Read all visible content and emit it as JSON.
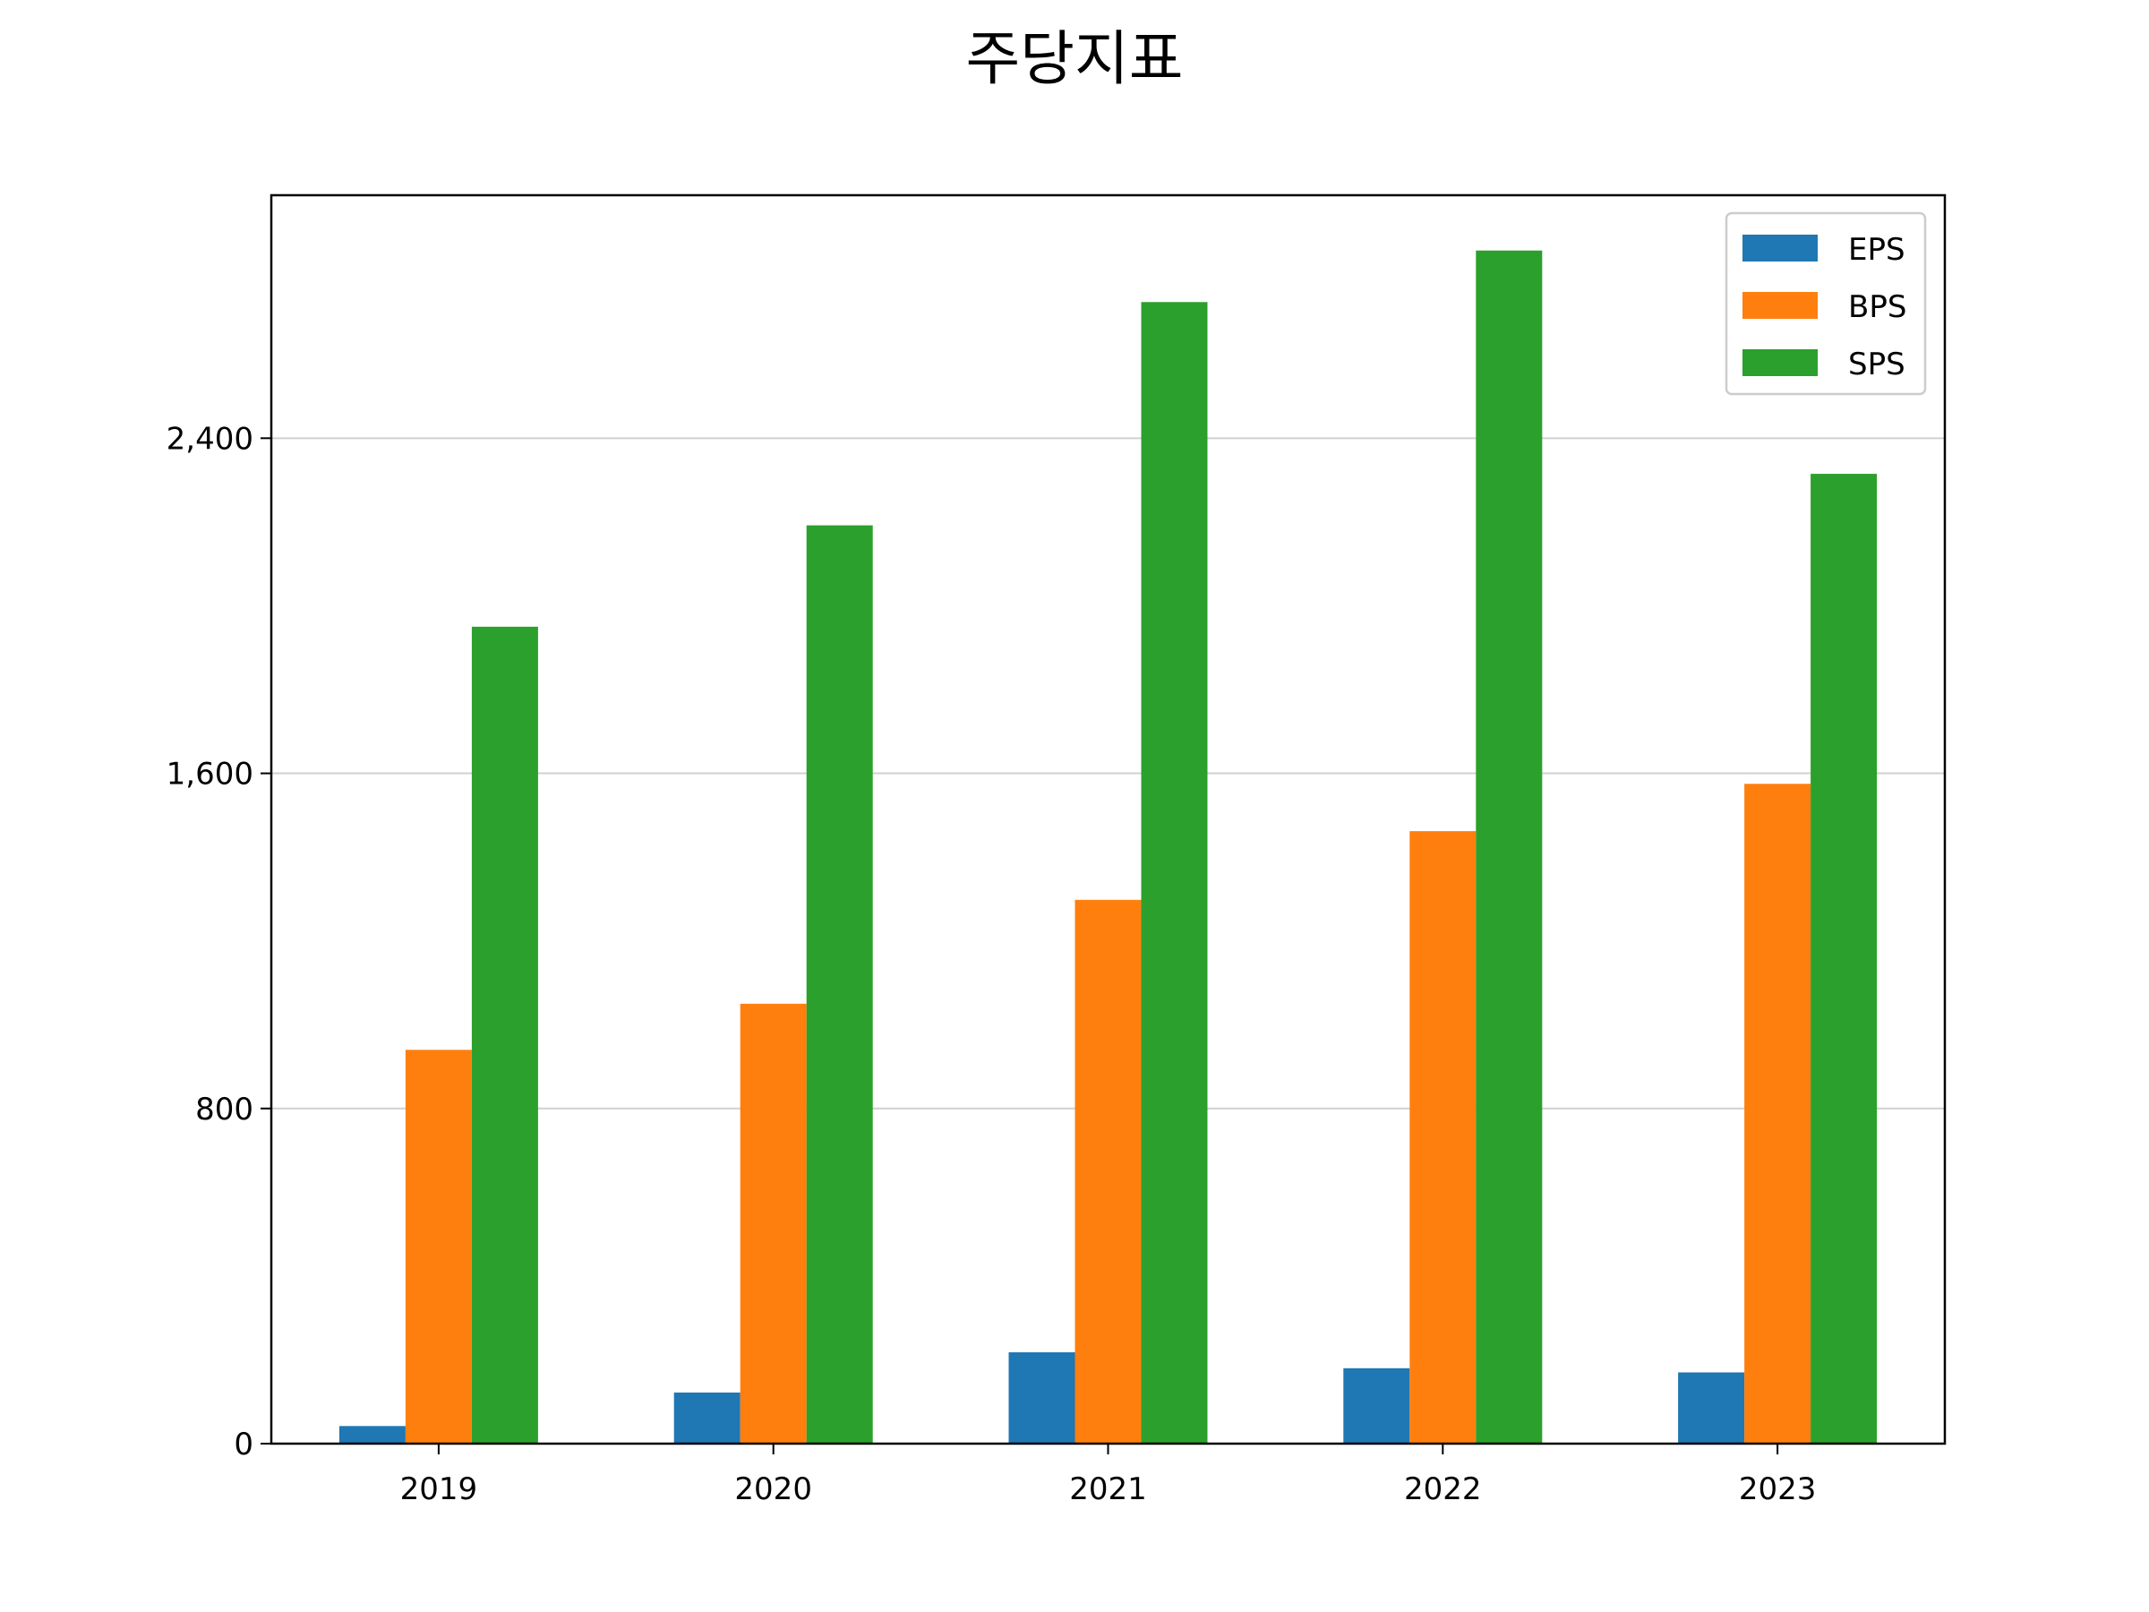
{
  "chart_data": {
    "type": "bar",
    "title": "주당지표",
    "xlabel": "",
    "ylabel": "",
    "categories": [
      "2019",
      "2020",
      "2021",
      "2022",
      "2023"
    ],
    "series": [
      {
        "name": "EPS",
        "color": "#1f77b4",
        "values": [
          42,
          122,
          218,
          180,
          170
        ]
      },
      {
        "name": "BPS",
        "color": "#ff7f0e",
        "values": [
          940,
          1050,
          1298,
          1462,
          1575
        ]
      },
      {
        "name": "SPS",
        "color": "#2ca02c",
        "values": [
          1950,
          2192,
          2725,
          2848,
          2315
        ]
      }
    ],
    "ylim": [
      0,
      2980
    ],
    "yticks": [
      0,
      800,
      1600,
      2400
    ],
    "ytick_labels": [
      "0",
      "800",
      "1,600",
      "2,400"
    ],
    "grid": "horizontal",
    "legend_position": "top-right"
  }
}
